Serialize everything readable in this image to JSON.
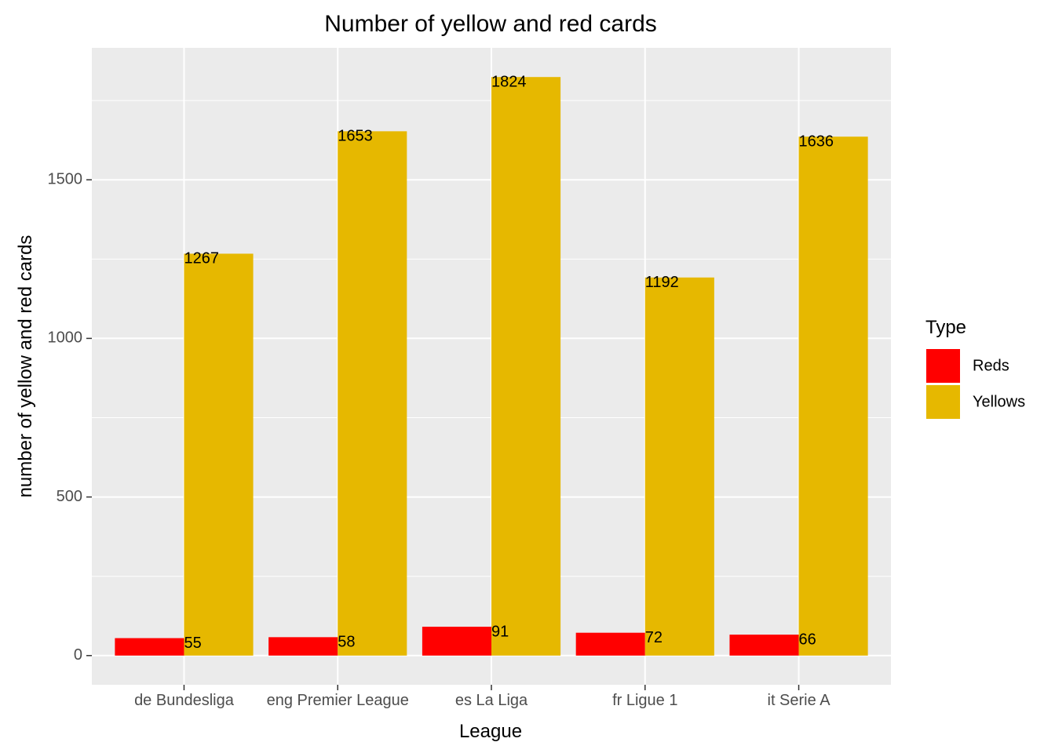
{
  "chart_data": {
    "type": "bar",
    "title": "Number of yellow and red cards",
    "xlabel": "League",
    "ylabel": "number of yellow and red cards",
    "categories": [
      "de Bundesliga",
      "eng Premier League",
      "es La Liga",
      "fr Ligue 1",
      "it Serie A"
    ],
    "series": [
      {
        "name": "Reds",
        "color": "#ff0000",
        "values": [
          55,
          58,
          91,
          72,
          66
        ]
      },
      {
        "name": "Yellows",
        "color": "#e6b800",
        "values": [
          1267,
          1653,
          1824,
          1192,
          1636
        ]
      }
    ],
    "ylim": [
      -92,
      1916
    ],
    "y_ticks": [
      0,
      500,
      1000,
      1500
    ],
    "grid": true,
    "panel_background": "#ebebeb",
    "legend": {
      "title": "Type",
      "position": "right",
      "entries": [
        "Reds",
        "Yellows"
      ]
    }
  }
}
